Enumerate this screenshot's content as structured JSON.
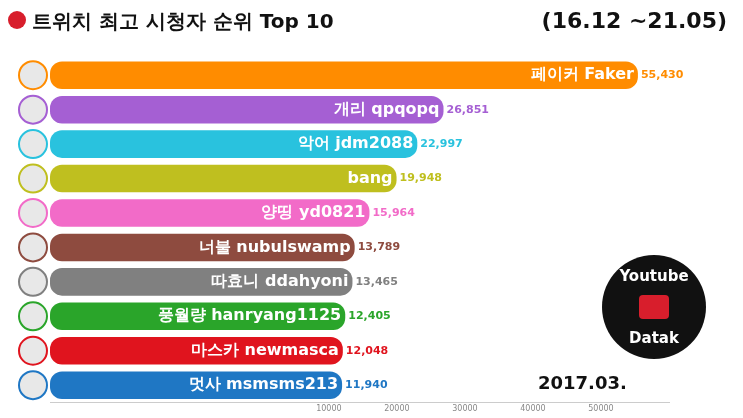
{
  "chart_data": {
    "type": "bar",
    "orientation": "horizontal",
    "title": "트위치 최고 시청자 순위 Top 10",
    "subtitle": "(16.12 ~21.05)",
    "annotations": [
      "2017.03.",
      "Youtube",
      "Datak"
    ],
    "categories": [
      "페이커 Faker",
      "개리 qpqopq",
      "악어 jdm2088",
      "bang",
      "양띵 yd0821",
      "너불 nubulswamp",
      "따효니 ddahyoni",
      "풍월량 hanryang1125",
      "마스카 newmasca",
      "멋사 msmsms213"
    ],
    "values": [
      55430,
      26851,
      22997,
      19948,
      15964,
      13789,
      13465,
      12405,
      12048,
      11940
    ],
    "value_labels": [
      "55,430",
      "26,851",
      "22,997",
      "19,948",
      "15,964",
      "13,789",
      "13,465",
      "12,405",
      "12,048",
      "11,940"
    ],
    "colors": [
      "#ff8c00",
      "#a55fd3",
      "#29c2de",
      "#bfbf1f",
      "#f26bc8",
      "#8e4b3f",
      "#808080",
      "#2aa52a",
      "#e0141e",
      "#1f77c4"
    ],
    "data_labels": true,
    "xlim": [
      -31000,
      60000
    ],
    "xticks": [
      10000,
      20000,
      30000,
      40000,
      50000
    ],
    "tick_labels": "x",
    "grid": false
  }
}
